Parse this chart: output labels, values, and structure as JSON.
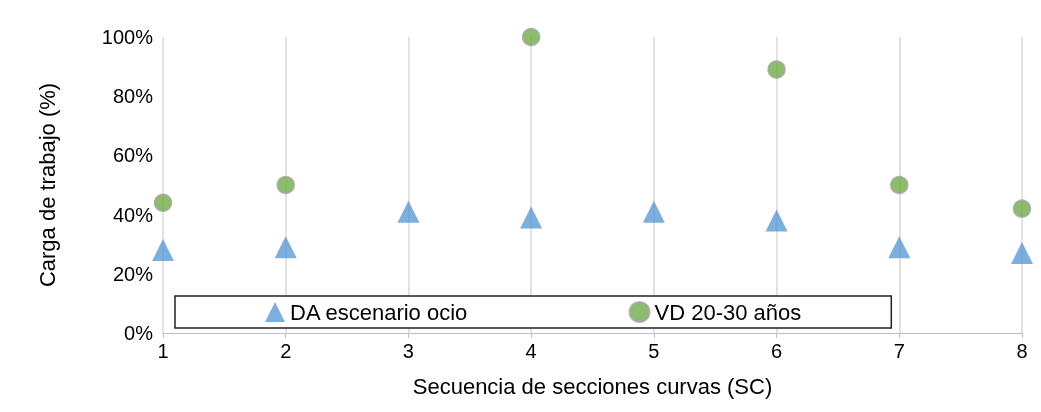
{
  "chart_data": {
    "type": "scatter",
    "xlabel": "Secuencia de secciones curvas (SC)",
    "ylabel": "Carga de trabajo (%)",
    "x": [
      1,
      2,
      3,
      4,
      5,
      6,
      7,
      8
    ],
    "series": [
      {
        "name": "DA escenario ocio",
        "color": "#5b9bd5",
        "marker": "triangle",
        "values": [
          28,
          29,
          41,
          39,
          41,
          38,
          29,
          27
        ]
      },
      {
        "name": "VD 20-30 años",
        "color": "#70ad47",
        "marker": "circle",
        "values": [
          44,
          50,
          null,
          100,
          null,
          89,
          50,
          42
        ]
      }
    ],
    "xlim": [
      1,
      8
    ],
    "xticks": [
      1,
      2,
      3,
      4,
      5,
      6,
      7,
      8
    ],
    "ylim": [
      0,
      100
    ],
    "yticks": [
      {
        "value": 0,
        "label": "0%"
      },
      {
        "value": 20,
        "label": "20%"
      },
      {
        "value": 40,
        "label": "40%"
      },
      {
        "value": 60,
        "label": "60%"
      },
      {
        "value": 80,
        "label": "80%"
      },
      {
        "value": 100,
        "label": "100%"
      }
    ],
    "grid": "x",
    "legend": "bottom"
  }
}
